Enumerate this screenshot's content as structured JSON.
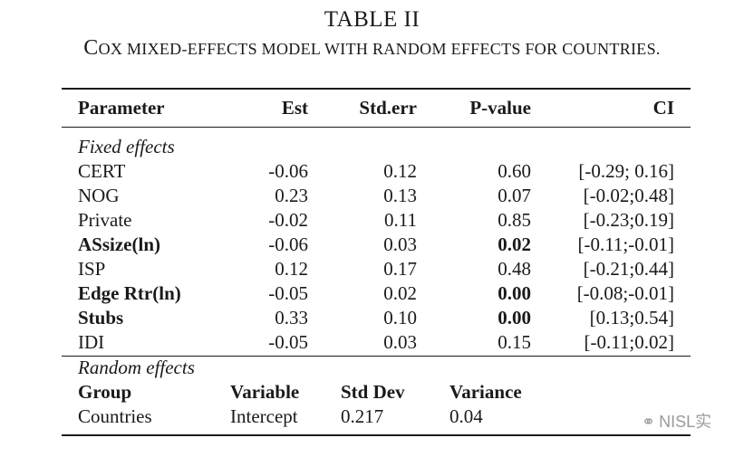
{
  "caption": {
    "label": "TABLE II",
    "title": "Cox mixed-effects model with random effects for countries."
  },
  "table": {
    "headers": [
      "Parameter",
      "Est",
      "Std.err",
      "P-value",
      "CI"
    ],
    "fixed_section_label": "Fixed effects",
    "fixed_rows": [
      {
        "param": "CERT",
        "est": "-0.06",
        "stderr": "0.12",
        "pvalue": "0.60",
        "ci": "[-0.29; 0.16]",
        "bold": false
      },
      {
        "param": "NOG",
        "est": "0.23",
        "stderr": "0.13",
        "pvalue": "0.07",
        "ci": "[-0.02;0.48]",
        "bold": false
      },
      {
        "param": "Private",
        "est": "-0.02",
        "stderr": "0.11",
        "pvalue": "0.85",
        "ci": "[-0.23;0.19]",
        "bold": false
      },
      {
        "param": "ASsize(ln)",
        "est": "-0.06",
        "stderr": "0.03",
        "pvalue": "0.02",
        "ci": "[-0.11;-0.01]",
        "bold": true
      },
      {
        "param": "ISP",
        "est": "0.12",
        "stderr": "0.17",
        "pvalue": "0.48",
        "ci": "[-0.21;0.44]",
        "bold": false
      },
      {
        "param": "Edge Rtr(ln)",
        "est": "-0.05",
        "stderr": "0.02",
        "pvalue": "0.00",
        "ci": "[-0.08;-0.01]",
        "bold": true
      },
      {
        "param": "Stubs",
        "est": "0.33",
        "stderr": "0.10",
        "pvalue": "0.00",
        "ci": "[0.13;0.54]",
        "bold": true
      },
      {
        "param": "IDI",
        "est": "-0.05",
        "stderr": "0.03",
        "pvalue": "0.15",
        "ci": "[-0.11;0.02]",
        "bold": false
      }
    ],
    "random_section_label": "Random effects",
    "random_headers": [
      "Group",
      "Variable",
      "Std Dev",
      "Variance"
    ],
    "random_rows": [
      {
        "group": "Countries",
        "variable": "Intercept",
        "stddev": "0.217",
        "variance": "0.04"
      }
    ]
  },
  "watermark": {
    "icon": "wechat-icon",
    "text": "NISL实"
  }
}
